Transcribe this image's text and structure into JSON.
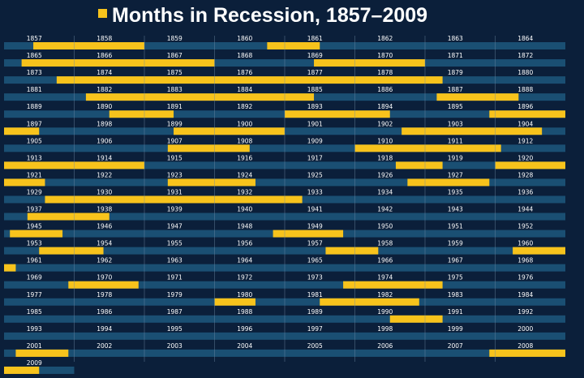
{
  "title": "Months in Recession, 1857–2009",
  "colors": {
    "background": "#0b1f3a",
    "track": "#1a4f73",
    "recession": "#f7c31c",
    "gridline": "#6f8aa6",
    "text": "#ffffff"
  },
  "chart_data": {
    "type": "bar",
    "title": "Months in Recession, 1857–2009",
    "xlabel": "",
    "ylabel": "",
    "legend": "title-left square (recession months)",
    "grid": true,
    "start_year": 1857,
    "end_year": 2009,
    "years_per_row": 8,
    "year_labels": [
      [
        "1857",
        "1858",
        "1859",
        "1860",
        "1861",
        "1862",
        "1863",
        "1864"
      ],
      [
        "1865",
        "1866",
        "1867",
        "1868",
        "1869",
        "1870",
        "1871",
        "1872"
      ],
      [
        "1873",
        "1874",
        "1875",
        "1876",
        "1877",
        "1878",
        "1879",
        "1880"
      ],
      [
        "1881",
        "1882",
        "1883",
        "1884",
        "1885",
        "1886",
        "1887",
        "1888"
      ],
      [
        "1889",
        "1890",
        "1891",
        "1892",
        "1893",
        "1894",
        "1895",
        "1896"
      ],
      [
        "1897",
        "1898",
        "1899",
        "1900",
        "1901",
        "1902",
        "1903",
        "1904"
      ],
      [
        "1905",
        "1906",
        "1907",
        "1908",
        "1909",
        "1910",
        "1911",
        "1912"
      ],
      [
        "1913",
        "1914",
        "1915",
        "1916",
        "1917",
        "1918",
        "1919",
        "1920"
      ],
      [
        "1921",
        "1922",
        "1923",
        "1924",
        "1925",
        "1926",
        "1927",
        "1928"
      ],
      [
        "1929",
        "1930",
        "1931",
        "1932",
        "1933",
        "1934",
        "1935",
        "1936"
      ],
      [
        "1937",
        "1938",
        "1939",
        "1940",
        "1941",
        "1942",
        "1943",
        "1944"
      ],
      [
        "1945",
        "1946",
        "1947",
        "1948",
        "1949",
        "1950",
        "1951",
        "1952"
      ],
      [
        "1953",
        "1954",
        "1955",
        "1956",
        "1957",
        "1958",
        "1959",
        "1960"
      ],
      [
        "1961",
        "1962",
        "1963",
        "1964",
        "1965",
        "1966",
        "1967",
        "1968"
      ],
      [
        "1969",
        "1970",
        "1971",
        "1972",
        "1973",
        "1974",
        "1975",
        "1976"
      ],
      [
        "1977",
        "1978",
        "1979",
        "1980",
        "1981",
        "1982",
        "1983",
        "1984"
      ],
      [
        "1985",
        "1986",
        "1987",
        "1988",
        "1989",
        "1990",
        "1991",
        "1992"
      ],
      [
        "1993",
        "1994",
        "1995",
        "1996",
        "1997",
        "1998",
        "1999",
        "2000"
      ],
      [
        "2001",
        "2002",
        "2003",
        "2004",
        "2005",
        "2006",
        "2007",
        "2008"
      ],
      [
        "2009"
      ]
    ],
    "recessions": [
      {
        "start": "1857-06",
        "end": "1858-12"
      },
      {
        "start": "1860-10",
        "end": "1861-06"
      },
      {
        "start": "1865-04",
        "end": "1867-12"
      },
      {
        "start": "1869-06",
        "end": "1870-12"
      },
      {
        "start": "1873-10",
        "end": "1879-03"
      },
      {
        "start": "1882-03",
        "end": "1885-05"
      },
      {
        "start": "1887-03",
        "end": "1888-04"
      },
      {
        "start": "1890-07",
        "end": "1891-05"
      },
      {
        "start": "1893-01",
        "end": "1894-06"
      },
      {
        "start": "1895-12",
        "end": "1897-06"
      },
      {
        "start": "1899-06",
        "end": "1900-12"
      },
      {
        "start": "1902-09",
        "end": "1904-08"
      },
      {
        "start": "1907-05",
        "end": "1908-06"
      },
      {
        "start": "1910-01",
        "end": "1912-01"
      },
      {
        "start": "1913-01",
        "end": "1914-12"
      },
      {
        "start": "1918-08",
        "end": "1919-03"
      },
      {
        "start": "1920-01",
        "end": "1921-07"
      },
      {
        "start": "1923-05",
        "end": "1924-07"
      },
      {
        "start": "1926-10",
        "end": "1927-11"
      },
      {
        "start": "1929-08",
        "end": "1933-03"
      },
      {
        "start": "1937-05",
        "end": "1938-06"
      },
      {
        "start": "1945-02",
        "end": "1945-10"
      },
      {
        "start": "1948-11",
        "end": "1949-10"
      },
      {
        "start": "1953-07",
        "end": "1954-05"
      },
      {
        "start": "1957-08",
        "end": "1958-04"
      },
      {
        "start": "1960-04",
        "end": "1961-02"
      },
      {
        "start": "1969-12",
        "end": "1970-11"
      },
      {
        "start": "1973-11",
        "end": "1975-03"
      },
      {
        "start": "1980-01",
        "end": "1980-07"
      },
      {
        "start": "1981-07",
        "end": "1982-11"
      },
      {
        "start": "1990-07",
        "end": "1991-03"
      },
      {
        "start": "2001-03",
        "end": "2001-11"
      },
      {
        "start": "2007-12",
        "end": "2009-06"
      }
    ]
  }
}
